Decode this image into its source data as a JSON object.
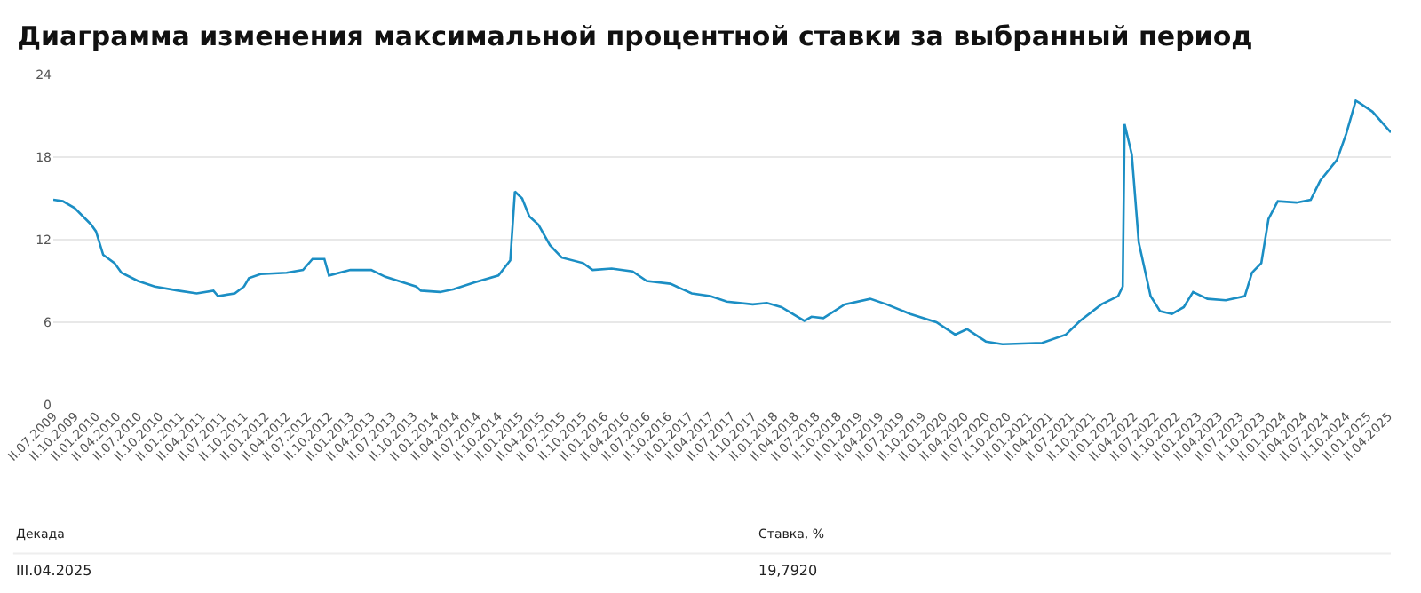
{
  "chart_data": {
    "type": "line",
    "title": "Диаграмма изменения максимальной процентной ставки за выбранный период",
    "x": [
      "2009-07-11",
      "2009-08-21",
      "2009-10-11",
      "2009-12-21",
      "2010-01-11",
      "2010-02-11",
      "2010-04-01",
      "2010-05-01",
      "2010-07-11",
      "2010-09-21",
      "2011-01-01",
      "2011-03-21",
      "2011-06-01",
      "2011-06-21",
      "2011-09-01",
      "2011-10-11",
      "2011-11-01",
      "2011-12-21",
      "2012-04-11",
      "2012-06-21",
      "2012-08-01",
      "2012-09-21",
      "2012-10-11",
      "2013-01-11",
      "2013-04-11",
      "2013-06-11",
      "2013-10-21",
      "2013-11-11",
      "2014-02-01",
      "2014-04-01",
      "2014-07-01",
      "2014-10-11",
      "2014-12-01",
      "2014-12-21",
      "2015-01-21",
      "2015-02-21",
      "2015-04-01",
      "2015-05-21",
      "2015-07-11",
      "2015-10-11",
      "2015-11-21",
      "2016-02-11",
      "2016-05-11",
      "2016-07-11",
      "2016-10-21",
      "2017-01-21",
      "2017-04-11",
      "2017-06-21",
      "2017-10-11",
      "2017-12-11",
      "2018-02-11",
      "2018-05-21",
      "2018-06-21",
      "2018-08-11",
      "2018-11-11",
      "2019-03-01",
      "2019-05-11",
      "2019-08-21",
      "2019-12-11",
      "2020-03-01",
      "2020-04-21",
      "2020-07-11",
      "2020-09-21",
      "2021-03-11",
      "2021-06-21",
      "2021-08-21",
      "2021-11-21",
      "2022-02-01",
      "2022-02-21",
      "2022-03-01",
      "2022-04-01",
      "2022-05-01",
      "2022-06-21",
      "2022-08-01",
      "2022-09-21",
      "2022-11-11",
      "2022-12-21",
      "2023-02-21",
      "2023-05-11",
      "2023-08-01",
      "2023-09-01",
      "2023-10-11",
      "2023-11-11",
      "2023-12-21",
      "2024-03-11",
      "2024-05-11",
      "2024-06-21",
      "2024-09-01",
      "2024-10-11",
      "2024-11-21",
      "2024-12-11",
      "2025-02-01",
      "2025-04-21"
    ],
    "series": [
      {
        "color": "#1b8ec4",
        "values": [
          14.9,
          14.8,
          14.3,
          13.1,
          12.6,
          10.9,
          10.3,
          9.6,
          9.0,
          8.6,
          8.3,
          8.1,
          8.3,
          7.9,
          8.1,
          8.6,
          9.2,
          9.5,
          9.6,
          9.8,
          10.6,
          10.6,
          9.4,
          9.8,
          9.8,
          9.3,
          8.6,
          8.3,
          8.2,
          8.4,
          8.9,
          9.4,
          10.5,
          15.5,
          15.0,
          13.7,
          13.1,
          11.6,
          10.7,
          10.3,
          9.8,
          9.9,
          9.7,
          9.0,
          8.8,
          8.1,
          7.9,
          7.5,
          7.3,
          7.4,
          7.1,
          6.1,
          6.4,
          6.3,
          7.3,
          7.7,
          7.3,
          6.6,
          6.0,
          5.1,
          5.5,
          4.6,
          4.4,
          4.5,
          5.1,
          6.1,
          7.3,
          7.9,
          8.6,
          20.4,
          18.2,
          11.8,
          7.9,
          6.8,
          6.6,
          7.1,
          8.2,
          7.7,
          7.6,
          7.9,
          9.6,
          10.3,
          13.5,
          14.8,
          14.7,
          14.9,
          16.3,
          17.8,
          19.7,
          22.1,
          21.9,
          21.3,
          19.792
        ]
      }
    ],
    "xlim": [
      "2009-07-11",
      "2025-04-21"
    ],
    "xticks": [
      {
        "value": "2009-07-11",
        "label": "II.07.2009"
      },
      {
        "value": "2009-10-11",
        "label": "II.10.2009"
      },
      {
        "value": "2010-01-11",
        "label": "II.01.2010"
      },
      {
        "value": "2010-04-11",
        "label": "II.04.2010"
      },
      {
        "value": "2010-07-11",
        "label": "II.07.2010"
      },
      {
        "value": "2010-10-11",
        "label": "II.10.2010"
      },
      {
        "value": "2011-01-11",
        "label": "II.01.2011"
      },
      {
        "value": "2011-04-11",
        "label": "II.04.2011"
      },
      {
        "value": "2011-07-11",
        "label": "II.07.2011"
      },
      {
        "value": "2011-10-11",
        "label": "II.10.2011"
      },
      {
        "value": "2012-01-11",
        "label": "II.01.2012"
      },
      {
        "value": "2012-04-11",
        "label": "II.04.2012"
      },
      {
        "value": "2012-07-11",
        "label": "II.07.2012"
      },
      {
        "value": "2012-10-11",
        "label": "II.10.2012"
      },
      {
        "value": "2013-01-11",
        "label": "II.01.2013"
      },
      {
        "value": "2013-04-11",
        "label": "II.04.2013"
      },
      {
        "value": "2013-07-11",
        "label": "II.07.2013"
      },
      {
        "value": "2013-10-11",
        "label": "II.10.2013"
      },
      {
        "value": "2014-01-11",
        "label": "II.01.2014"
      },
      {
        "value": "2014-04-11",
        "label": "II.04.2014"
      },
      {
        "value": "2014-07-11",
        "label": "II.07.2014"
      },
      {
        "value": "2014-10-11",
        "label": "II.10.2014"
      },
      {
        "value": "2015-01-11",
        "label": "II.01.2015"
      },
      {
        "value": "2015-04-11",
        "label": "II.04.2015"
      },
      {
        "value": "2015-07-11",
        "label": "II.07.2015"
      },
      {
        "value": "2015-10-11",
        "label": "II.10.2015"
      },
      {
        "value": "2016-01-11",
        "label": "II.01.2016"
      },
      {
        "value": "2016-04-11",
        "label": "II.04.2016"
      },
      {
        "value": "2016-07-11",
        "label": "II.07.2016"
      },
      {
        "value": "2016-10-11",
        "label": "II.10.2016"
      },
      {
        "value": "2017-01-11",
        "label": "II.01.2017"
      },
      {
        "value": "2017-04-11",
        "label": "II.04.2017"
      },
      {
        "value": "2017-07-11",
        "label": "II.07.2017"
      },
      {
        "value": "2017-10-11",
        "label": "II.10.2017"
      },
      {
        "value": "2018-01-11",
        "label": "II.01.2018"
      },
      {
        "value": "2018-04-11",
        "label": "II.04.2018"
      },
      {
        "value": "2018-07-11",
        "label": "II.07.2018"
      },
      {
        "value": "2018-10-11",
        "label": "II.10.2018"
      },
      {
        "value": "2019-01-11",
        "label": "II.01.2019"
      },
      {
        "value": "2019-04-11",
        "label": "II.04.2019"
      },
      {
        "value": "2019-07-11",
        "label": "II.07.2019"
      },
      {
        "value": "2019-10-11",
        "label": "II.10.2019"
      },
      {
        "value": "2020-01-11",
        "label": "II.01.2020"
      },
      {
        "value": "2020-04-11",
        "label": "II.04.2020"
      },
      {
        "value": "2020-07-11",
        "label": "II.07.2020"
      },
      {
        "value": "2020-10-11",
        "label": "II.10.2020"
      },
      {
        "value": "2021-01-11",
        "label": "II.01.2021"
      },
      {
        "value": "2021-04-11",
        "label": "II.04.2021"
      },
      {
        "value": "2021-07-11",
        "label": "II.07.2021"
      },
      {
        "value": "2021-10-11",
        "label": "II.10.2021"
      },
      {
        "value": "2022-01-11",
        "label": "II.01.2022"
      },
      {
        "value": "2022-04-11",
        "label": "II.04.2022"
      },
      {
        "value": "2022-07-11",
        "label": "II.07.2022"
      },
      {
        "value": "2022-10-11",
        "label": "II.10.2022"
      },
      {
        "value": "2023-01-11",
        "label": "II.01.2023"
      },
      {
        "value": "2023-04-11",
        "label": "II.04.2023"
      },
      {
        "value": "2023-07-11",
        "label": "II.07.2023"
      },
      {
        "value": "2023-10-11",
        "label": "II.10.2023"
      },
      {
        "value": "2024-01-11",
        "label": "II.01.2024"
      },
      {
        "value": "2024-04-11",
        "label": "II.04.2024"
      },
      {
        "value": "2024-07-11",
        "label": "II.07.2024"
      },
      {
        "value": "2024-10-11",
        "label": "II.10.2024"
      },
      {
        "value": "2025-01-11",
        "label": "II.01.2025"
      },
      {
        "value": "2025-04-11",
        "label": "II.04.2025"
      }
    ],
    "ylim": [
      0,
      24
    ],
    "yticks": [
      0,
      6,
      12,
      18,
      24
    ],
    "grid": "y",
    "marker": "none",
    "line_style": "solid",
    "annotations": [
      "Декада",
      "Ставка, %",
      "III.04.2025",
      "19,7920"
    ]
  }
}
